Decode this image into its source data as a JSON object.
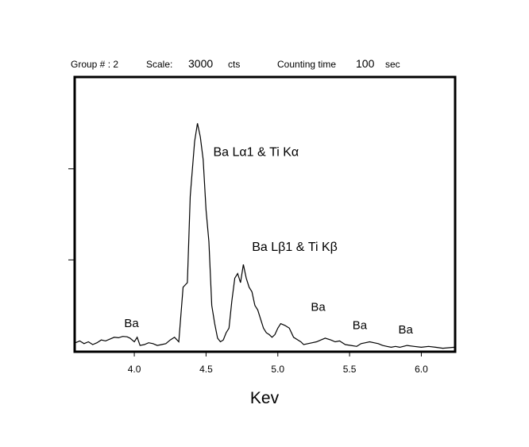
{
  "header": {
    "group_label": "Group # : 2",
    "scale_label": "Scale:",
    "scale_value": "3000",
    "scale_unit": "cts",
    "time_label": "Counting time",
    "time_value": "100",
    "time_unit": "sec"
  },
  "chart_data": {
    "type": "line",
    "title": "",
    "xlabel": "Kev",
    "ylabel": "",
    "xlim": [
      3.59,
      6.23
    ],
    "ylim": [
      0,
      3000
    ],
    "x_ticks": [
      4.0,
      4.5,
      5.0,
      5.5,
      6.0
    ],
    "x_tick_labels": [
      "4.0",
      "4.5",
      "5.0",
      "5.5",
      "6.0"
    ],
    "y_ticks": [
      1000,
      2000
    ],
    "grid": false,
    "series": [
      {
        "name": "",
        "x": [
          3.59,
          3.62,
          3.65,
          3.68,
          3.71,
          3.74,
          3.77,
          3.8,
          3.83,
          3.86,
          3.89,
          3.92,
          3.95,
          3.97,
          4.0,
          4.02,
          4.04,
          4.07,
          4.1,
          4.13,
          4.16,
          4.19,
          4.22,
          4.25,
          4.28,
          4.31,
          4.34,
          4.37,
          4.39,
          4.42,
          4.44,
          4.46,
          4.48,
          4.5,
          4.52,
          4.54,
          4.56,
          4.58,
          4.6,
          4.62,
          4.64,
          4.66,
          4.68,
          4.7,
          4.72,
          4.74,
          4.76,
          4.78,
          4.8,
          4.82,
          4.84,
          4.86,
          4.88,
          4.9,
          4.92,
          4.94,
          4.96,
          4.98,
          5.0,
          5.02,
          5.05,
          5.08,
          5.11,
          5.14,
          5.16,
          5.18,
          5.21,
          5.24,
          5.27,
          5.3,
          5.33,
          5.37,
          5.4,
          5.43,
          5.47,
          5.51,
          5.55,
          5.58,
          5.61,
          5.64,
          5.67,
          5.7,
          5.73,
          5.76,
          5.79,
          5.82,
          5.85,
          5.9,
          5.95,
          6.0,
          6.05,
          6.1,
          6.15,
          6.23
        ],
        "values": [
          90,
          110,
          80,
          100,
          70,
          90,
          120,
          110,
          130,
          150,
          145,
          160,
          155,
          140,
          100,
          150,
          60,
          70,
          90,
          80,
          60,
          70,
          80,
          120,
          150,
          100,
          700,
          750,
          1700,
          2300,
          2500,
          2350,
          2100,
          1550,
          1200,
          500,
          300,
          140,
          100,
          120,
          200,
          250,
          550,
          800,
          850,
          750,
          950,
          800,
          700,
          650,
          500,
          450,
          350,
          250,
          200,
          180,
          150,
          180,
          250,
          300,
          280,
          250,
          150,
          120,
          100,
          70,
          80,
          90,
          100,
          120,
          140,
          120,
          100,
          110,
          70,
          60,
          50,
          80,
          90,
          100,
          90,
          80,
          60,
          50,
          40,
          50,
          40,
          60,
          50,
          40,
          50,
          40,
          30,
          40
        ]
      }
    ],
    "annotations": [
      {
        "text": "Ba Lα1 & Ti Kα",
        "x": 4.55,
        "y": 2140
      },
      {
        "text": "Ba Lβ1 & Ti Kβ",
        "x": 4.82,
        "y": 1100
      },
      {
        "text": "Ba",
        "x": 3.93,
        "y": 260
      },
      {
        "text": "Ba",
        "x": 5.23,
        "y": 440
      },
      {
        "text": "Ba",
        "x": 5.52,
        "y": 240
      },
      {
        "text": "Ba",
        "x": 5.84,
        "y": 190
      }
    ]
  }
}
